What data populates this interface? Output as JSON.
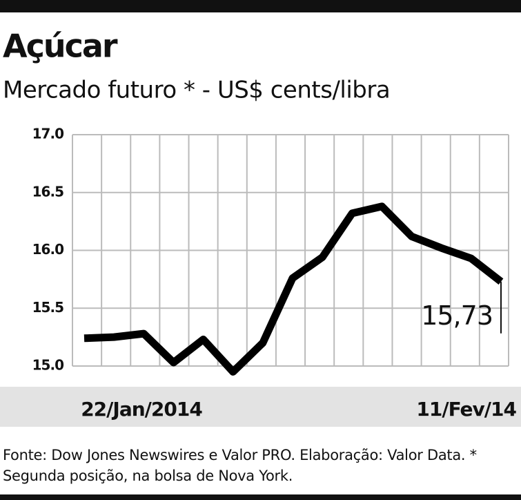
{
  "chart_data": {
    "type": "line",
    "title": "Açúcar",
    "subtitle": "Mercado futuro * -  US$ cents/libra",
    "categories": [
      "22/Jan/2014",
      null,
      null,
      null,
      null,
      null,
      null,
      null,
      null,
      null,
      null,
      null,
      null,
      null,
      "11/Fev/14"
    ],
    "values": [
      15.24,
      15.25,
      15.28,
      15.03,
      15.23,
      14.95,
      15.2,
      15.76,
      15.94,
      16.32,
      16.38,
      16.12,
      16.02,
      15.93,
      15.73
    ],
    "value_labels": [
      null,
      null,
      null,
      null,
      null,
      null,
      null,
      null,
      null,
      null,
      null,
      null,
      null,
      null,
      "15,73"
    ],
    "color": "#000000",
    "ylim": [
      15,
      17
    ],
    "yticks": [
      {
        "value": 15,
        "label": "15.0"
      },
      15.5,
      {
        "value": 16,
        "label": "16.0"
      },
      16.5,
      {
        "value": 17,
        "label": "17.0"
      }
    ],
    "grid": true,
    "source": "Fonte: Dow Jones Newswires e Valor PRO. Elaboração: Valor Data. * Segunda posição, na bolsa de Nova York."
  }
}
